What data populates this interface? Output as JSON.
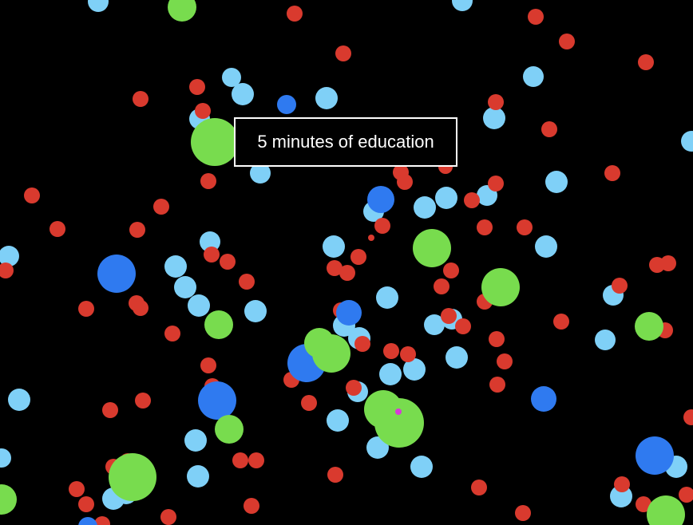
{
  "caption": "5 minutes of education",
  "palette": {
    "background": "#000000",
    "red": "#d93a2e",
    "light_blue": "#7fd0f7",
    "blue": "#2f7af0",
    "green": "#78dc4e",
    "magenta": "#d83ad8",
    "caption_border": "#ffffff",
    "caption_text": "#ffffff"
  },
  "entities": {
    "red_dots": 84,
    "light_blue_dots": 60,
    "blue_dots": 9,
    "green_dots": 17,
    "player_marker": 1
  }
}
